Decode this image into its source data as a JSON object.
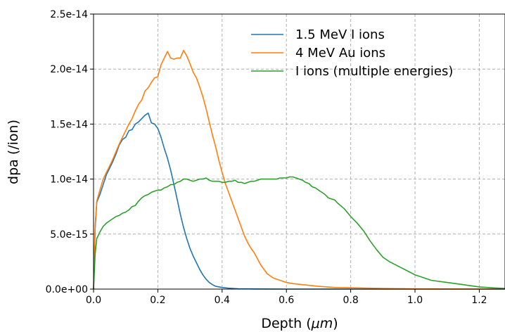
{
  "chart_data": {
    "type": "line",
    "title": "",
    "xlabel": "Depth (μm)",
    "xlabel_text": "Depth (",
    "xlabel_unit": "μm",
    "xlabel_close": ")",
    "ylabel": "dpa (/ion)",
    "xlim": [
      0.0,
      1.28
    ],
    "ylim": [
      0,
      2.5e-14
    ],
    "xticks": [
      0.0,
      0.2,
      0.4,
      0.6,
      0.8,
      1.0,
      1.2
    ],
    "xtick_labels": [
      "0.0",
      "0.2",
      "0.4",
      "0.6",
      "0.8",
      "1.0",
      "1.2"
    ],
    "yticks": [
      0,
      5e-15,
      1e-14,
      1.5e-14,
      2e-14,
      2.5e-14
    ],
    "ytick_labels": [
      "0.0e+00",
      "5.0e-15",
      "1.0e-14",
      "1.5e-14",
      "2.0e-14",
      "2.5e-14"
    ],
    "grid": true,
    "legend_position": "top-right",
    "series": [
      {
        "name": "1.5 MeV I ions",
        "color": "#1f77b4",
        "x": [
          0.0,
          0.005,
          0.01,
          0.02,
          0.03,
          0.04,
          0.05,
          0.06,
          0.07,
          0.08,
          0.09,
          0.1,
          0.11,
          0.12,
          0.13,
          0.14,
          0.15,
          0.16,
          0.17,
          0.18,
          0.19,
          0.2,
          0.21,
          0.22,
          0.23,
          0.24,
          0.25,
          0.26,
          0.27,
          0.28,
          0.29,
          0.3,
          0.31,
          0.32,
          0.33,
          0.34,
          0.35,
          0.36,
          0.37,
          0.38,
          0.4,
          0.42,
          0.45,
          0.5,
          0.55,
          0.6,
          0.7,
          0.8,
          1.0,
          1.28
        ],
        "y": [
          0,
          5.5e-15,
          7.9e-15,
          8.6e-15,
          9.5e-15,
          1.04e-14,
          1.1e-14,
          1.16e-14,
          1.23e-14,
          1.31e-14,
          1.36e-14,
          1.38e-14,
          1.44e-14,
          1.45e-14,
          1.5e-14,
          1.52e-14,
          1.55e-14,
          1.58e-14,
          1.6e-14,
          1.51e-14,
          1.5e-14,
          1.46e-14,
          1.38e-14,
          1.28e-14,
          1.19e-14,
          1.08e-14,
          9.5e-15,
          8.2e-15,
          6.8e-15,
          5.6e-15,
          4.6e-15,
          3.7e-15,
          3e-15,
          2.4e-15,
          1.8e-15,
          1.3e-15,
          9e-16,
          6e-16,
          4e-16,
          2.5e-16,
          1.5e-16,
          8e-17,
          3e-17,
          1e-17,
          5e-18,
          0,
          0,
          0,
          0,
          0
        ]
      },
      {
        "name": "4 MeV Au ions",
        "color": "#ff7f0e",
        "x": [
          0.0,
          0.005,
          0.01,
          0.02,
          0.03,
          0.04,
          0.05,
          0.06,
          0.07,
          0.08,
          0.09,
          0.1,
          0.11,
          0.12,
          0.13,
          0.14,
          0.15,
          0.16,
          0.17,
          0.18,
          0.19,
          0.2,
          0.21,
          0.22,
          0.23,
          0.24,
          0.25,
          0.26,
          0.27,
          0.28,
          0.29,
          0.3,
          0.31,
          0.32,
          0.33,
          0.34,
          0.35,
          0.36,
          0.37,
          0.38,
          0.39,
          0.4,
          0.41,
          0.42,
          0.43,
          0.44,
          0.45,
          0.46,
          0.47,
          0.48,
          0.49,
          0.5,
          0.52,
          0.54,
          0.56,
          0.58,
          0.6,
          0.62,
          0.65,
          0.7,
          0.75,
          0.8,
          0.9,
          1.0,
          1.1,
          1.28
        ],
        "y": [
          0,
          5.8e-15,
          8e-15,
          9e-15,
          1e-14,
          1.06e-14,
          1.12e-14,
          1.18e-14,
          1.25e-14,
          1.32e-14,
          1.38e-14,
          1.44e-14,
          1.5e-14,
          1.55e-14,
          1.62e-14,
          1.68e-14,
          1.72e-14,
          1.8e-14,
          1.83e-14,
          1.88e-14,
          1.92e-14,
          1.93e-14,
          2.04e-14,
          2.1e-14,
          2.16e-14,
          2.1e-14,
          2.09e-14,
          2.1e-14,
          2.1e-14,
          2.17e-14,
          2.12e-14,
          2.05e-14,
          1.97e-14,
          1.92e-14,
          1.84e-14,
          1.75e-14,
          1.64e-14,
          1.52e-14,
          1.4e-14,
          1.29e-14,
          1.17e-14,
          1.06e-14,
          9.6e-15,
          8.8e-15,
          8e-15,
          7.2e-15,
          6.4e-15,
          5.6e-15,
          4.8e-15,
          4.2e-15,
          3.7e-15,
          3.3e-15,
          2.2e-15,
          1.4e-15,
          1e-15,
          8e-16,
          6e-16,
          5e-16,
          4e-16,
          2.5e-16,
          1.5e-16,
          1.2e-16,
          6e-17,
          2e-17,
          1e-17,
          0
        ]
      },
      {
        "name": "I ions (multiple energies)",
        "color": "#2ca02c",
        "x": [
          0.0,
          0.005,
          0.01,
          0.02,
          0.03,
          0.04,
          0.05,
          0.06,
          0.07,
          0.08,
          0.09,
          0.1,
          0.11,
          0.12,
          0.13,
          0.14,
          0.15,
          0.16,
          0.17,
          0.18,
          0.19,
          0.2,
          0.21,
          0.22,
          0.23,
          0.24,
          0.25,
          0.26,
          0.27,
          0.28,
          0.29,
          0.3,
          0.31,
          0.32,
          0.33,
          0.34,
          0.35,
          0.36,
          0.37,
          0.38,
          0.39,
          0.4,
          0.41,
          0.42,
          0.43,
          0.44,
          0.45,
          0.46,
          0.47,
          0.48,
          0.49,
          0.5,
          0.51,
          0.52,
          0.53,
          0.54,
          0.55,
          0.56,
          0.57,
          0.58,
          0.59,
          0.6,
          0.61,
          0.62,
          0.63,
          0.64,
          0.65,
          0.66,
          0.67,
          0.68,
          0.69,
          0.7,
          0.71,
          0.72,
          0.73,
          0.74,
          0.75,
          0.76,
          0.78,
          0.8,
          0.82,
          0.84,
          0.86,
          0.88,
          0.9,
          0.92,
          0.94,
          0.96,
          0.98,
          1.0,
          1.02,
          1.05,
          1.1,
          1.15,
          1.2,
          1.25,
          1.28
        ],
        "y": [
          0,
          3.2e-15,
          4.6e-15,
          5.2e-15,
          5.7e-15,
          6e-15,
          6.2e-15,
          6.4e-15,
          6.6e-15,
          6.7e-15,
          6.9e-15,
          7e-15,
          7.2e-15,
          7.5e-15,
          7.6e-15,
          8e-15,
          8.3e-15,
          8.5e-15,
          8.6e-15,
          8.8e-15,
          8.9e-15,
          9e-15,
          9e-15,
          9.2e-15,
          9.3e-15,
          9.5e-15,
          9.5e-15,
          9.7e-15,
          9.8e-15,
          1e-14,
          1e-14,
          9.9e-15,
          9.8e-15,
          9.9e-15,
          1e-14,
          1e-14,
          1.01e-14,
          9.9e-15,
          9.8e-15,
          9.8e-15,
          9.8e-15,
          9.7e-15,
          9.7e-15,
          9.8e-15,
          9.8e-15,
          9.9e-15,
          9.7e-15,
          9.7e-15,
          9.6e-15,
          9.7e-15,
          9.8e-15,
          9.8e-15,
          9.9e-15,
          1e-14,
          1e-14,
          1e-14,
          1e-14,
          1e-14,
          1e-14,
          1.01e-14,
          1.01e-14,
          1.01e-14,
          1.02e-14,
          1.02e-14,
          1.01e-14,
          1e-14,
          9.9e-15,
          9.7e-15,
          9.6e-15,
          9.3e-15,
          9.2e-15,
          9e-15,
          8.8e-15,
          8.6e-15,
          8.3e-15,
          8.2e-15,
          8.1e-15,
          7.8e-15,
          7.3e-15,
          6.6e-15,
          6e-15,
          5.3e-15,
          4.4e-15,
          3.6e-15,
          2.9e-15,
          2.5e-15,
          2.2e-15,
          1.9e-15,
          1.6e-15,
          1.3e-15,
          1.1e-15,
          8e-16,
          6e-16,
          4e-16,
          2e-16,
          1e-16,
          6e-17
        ]
      }
    ]
  }
}
